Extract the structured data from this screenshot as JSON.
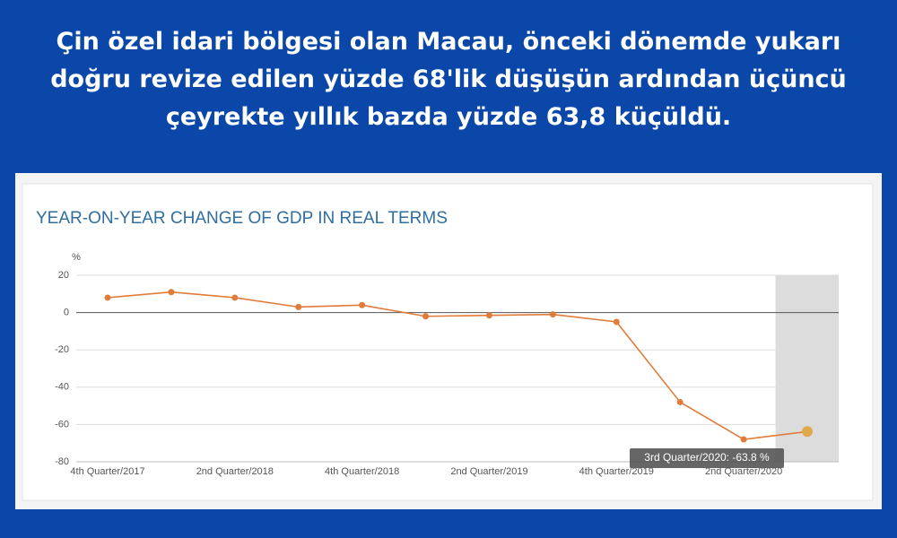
{
  "headline": [
    "Çin özel idari bölgesi olan Macau, önceki dönemde yukarı",
    "doğru revize edilen yüzde 68'lik düşüşün ardından üçüncü",
    "çeyrekte yıllık bazda yüzde 63,8 küçüldü."
  ],
  "chart_data": {
    "type": "line",
    "title": "YEAR-ON-YEAR CHANGE OF GDP IN REAL TERMS",
    "y_label": "%",
    "categories": [
      "4th Quarter/2017",
      null,
      "2nd Quarter/2018",
      null,
      "4th Quarter/2018",
      null,
      "2nd Quarter/2019",
      null,
      "4th Quarter/2019",
      null,
      "2nd Quarter/2020",
      null
    ],
    "series": [
      {
        "name": "GDP",
        "color": "#e07b39",
        "values": [
          8,
          11,
          8,
          3,
          4,
          -2,
          -1.5,
          -1,
          -5,
          -48,
          -68,
          -63.8
        ]
      }
    ],
    "ylim": [
      -80,
      20
    ],
    "yticks": [
      -80,
      -60,
      -40,
      -20,
      0,
      20
    ],
    "grid": true,
    "tooltip": "3rd Quarter/2020: -63.8 %"
  }
}
